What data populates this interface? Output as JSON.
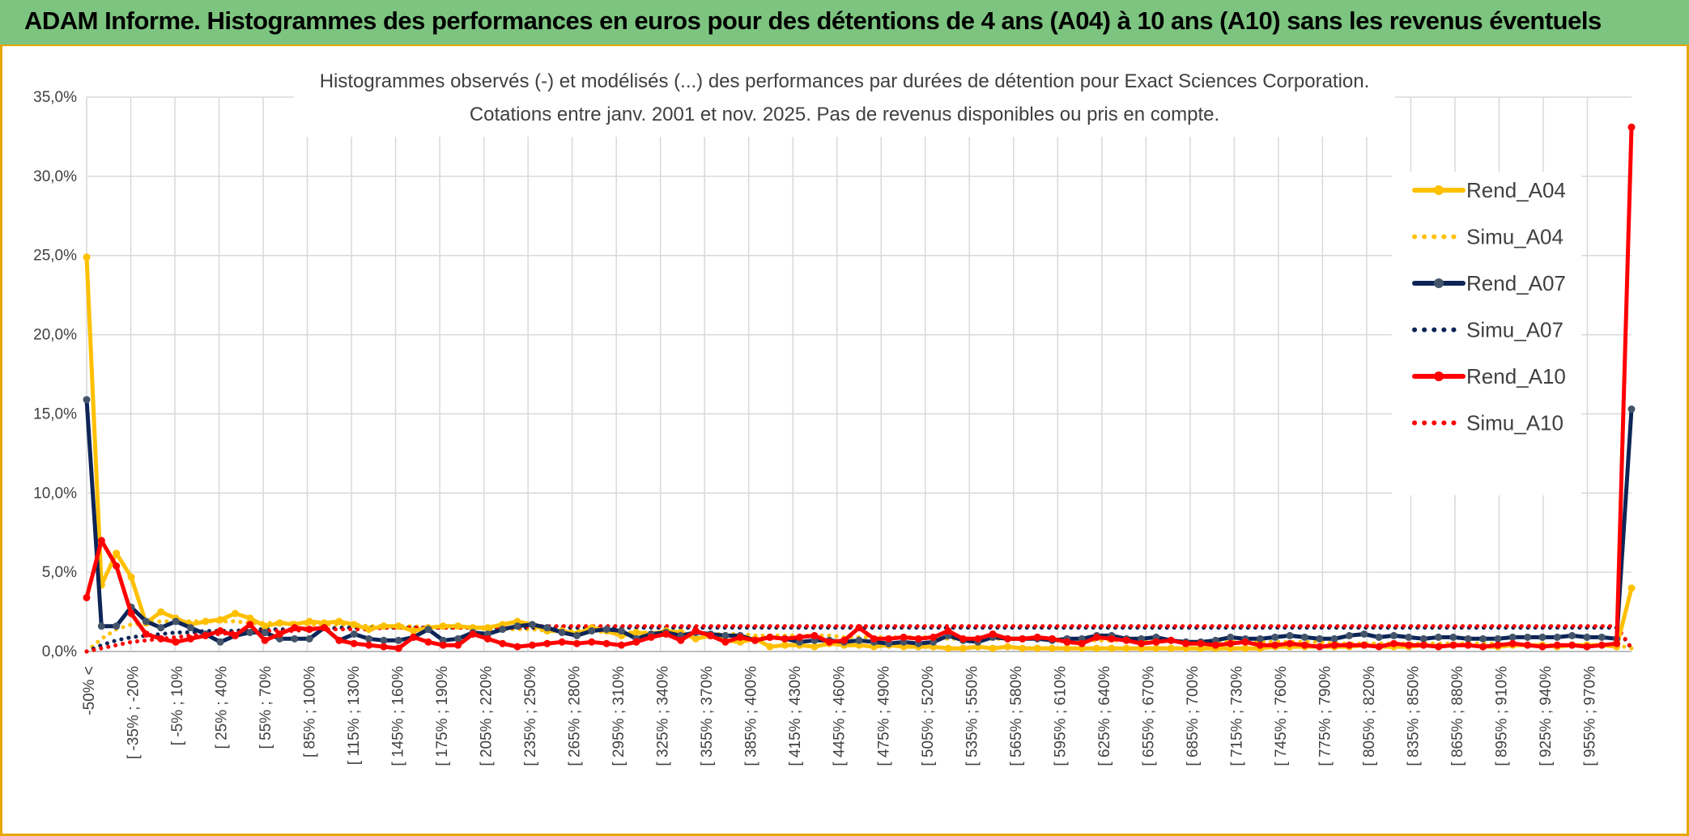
{
  "banner": {
    "title": "ADAM Informe. Histogrammes des performances en euros pour des détentions de 4 ans (A04) à 10 ans (A10) sans les revenus éventuels"
  },
  "colors": {
    "banner_bg": "#7cc47f",
    "frame": "#e6a700",
    "A04": "#ffc000",
    "A07": "#0d2557",
    "A07_marker": "#44546a",
    "A10": "#ff0000",
    "grid": "#d9d9d9"
  },
  "chart_data": {
    "type": "line",
    "title": "Histogrammes observés (-) et modélisés (...) des performances par durées de détention pour Exact Sciences Corporation.",
    "subtitle": "Cotations entre janv. 2001 et nov. 2025. Pas de revenus disponibles ou pris en compte.",
    "ylim": [
      0,
      35
    ],
    "yticks": [
      "0,0%",
      "5,0%",
      "10,0%",
      "15,0%",
      "20,0%",
      "25,0%",
      "30,0%",
      "35,0%"
    ],
    "grid": true,
    "legend_position": "right",
    "x_tick_labels": [
      "-50% <",
      "[ -35% ; -20%",
      "[ -5% ; 10%",
      "[ 25% ; 40%",
      "[ 55% ; 70%",
      "[ 85% ; 100%",
      "[ 115% ; 130%",
      "[ 145% ; 160%",
      "[ 175% ; 190%",
      "[ 205% ; 220%",
      "[ 235% ; 250%",
      "[ 265% ; 280%",
      "[ 295% ; 310%",
      "[ 325% ; 340%",
      "[ 355% ; 370%",
      "[ 385% ; 400%",
      "[ 415% ; 430%",
      "[ 445% ; 460%",
      "[ 475% ; 490%",
      "[ 505% ; 520%",
      "[ 535% ; 550%",
      "[ 565% ; 580%",
      "[ 595% ; 610%",
      "[ 625% ; 640%",
      "[ 655% ; 670%",
      "[ 685% ; 700%",
      "[ 715% ; 730%",
      "[ 745% ; 760%",
      "[ 775% ; 790%",
      "[ 805% ; 820%",
      "[ 835% ; 850%",
      "[ 865% ; 880%",
      "[ 895% ; 910%",
      "[ 925% ; 940%",
      "[ 955% ; 970%"
    ],
    "series": [
      {
        "name": "Rend_A04",
        "style": "solid",
        "color": "#ffc000",
        "values": [
          24.9,
          4.2,
          6.2,
          4.7,
          1.8,
          2.5,
          2.1,
          1.7,
          1.9,
          2.0,
          2.4,
          2.1,
          1.6,
          1.8,
          1.7,
          1.9,
          1.8,
          1.9,
          1.7,
          1.4,
          1.6,
          1.6,
          1.3,
          1.5,
          1.6,
          1.6,
          1.5,
          1.5,
          1.7,
          1.9,
          1.7,
          1.3,
          1.3,
          1.1,
          1.5,
          1.3,
          1.0,
          1.2,
          1.1,
          1.3,
          1.2,
          0.8,
          1.0,
          0.7,
          0.6,
          0.8,
          0.3,
          0.4,
          0.4,
          0.3,
          0.5,
          0.4,
          0.4,
          0.3,
          0.4,
          0.3,
          0.3,
          0.3,
          0.2,
          0.2,
          0.3,
          0.2,
          0.3,
          0.2,
          0.2,
          0.2,
          0.2,
          0.2,
          0.2,
          0.2,
          0.2,
          0.2,
          0.2,
          0.2,
          0.2,
          0.2,
          0.2,
          0.2,
          0.2,
          0.2,
          0.3,
          0.3,
          0.3,
          0.3,
          0.3,
          0.3,
          0.4,
          0.3,
          0.3,
          0.3,
          0.4,
          0.3,
          0.4,
          0.4,
          0.3,
          0.3,
          0.4,
          0.4,
          0.4,
          0.3,
          0.4,
          0.4,
          0.4,
          0.3,
          4.0
        ]
      },
      {
        "name": "Simu_A04",
        "style": "dotted",
        "color": "#ffc000",
        "values": [
          0.0,
          0.8,
          1.4,
          1.7,
          1.8,
          1.9,
          1.9,
          1.9,
          1.9,
          1.9,
          1.9,
          1.8,
          1.8,
          1.8,
          1.8,
          1.7,
          1.7,
          1.7,
          1.7,
          1.6,
          1.6,
          1.6,
          1.6,
          1.5,
          1.5,
          1.5,
          1.5,
          1.4,
          1.4,
          1.4,
          1.4,
          1.3,
          1.3,
          1.3,
          1.3,
          1.2,
          1.2,
          1.2,
          1.2,
          1.2,
          1.1,
          1.1,
          1.1,
          1.1,
          1.1,
          1.0,
          1.0,
          1.0,
          1.0,
          1.0,
          1.0,
          0.9,
          0.9,
          0.9,
          0.9,
          0.9,
          0.9,
          0.9,
          0.8,
          0.8,
          0.8,
          0.8,
          0.8,
          0.8,
          0.8,
          0.7,
          0.7,
          0.7,
          0.7,
          0.7,
          0.7,
          0.7,
          0.7,
          0.7,
          0.6,
          0.6,
          0.6,
          0.6,
          0.6,
          0.6,
          0.6,
          0.6,
          0.6,
          0.6,
          0.5,
          0.5,
          0.5,
          0.5,
          0.5,
          0.5,
          0.5,
          0.5,
          0.5,
          0.5,
          0.5,
          0.5,
          0.4,
          0.4,
          0.4,
          0.4,
          0.4,
          0.4,
          0.4,
          0.4,
          0.2
        ]
      },
      {
        "name": "Rend_A07",
        "style": "solid",
        "color": "#0d2557",
        "values": [
          15.9,
          1.6,
          1.6,
          2.8,
          1.9,
          1.5,
          1.9,
          1.5,
          1.1,
          0.6,
          1.0,
          1.2,
          1.2,
          0.8,
          0.8,
          0.8,
          1.5,
          0.7,
          1.1,
          0.8,
          0.7,
          0.7,
          0.9,
          1.4,
          0.7,
          0.8,
          1.2,
          1.1,
          1.4,
          1.6,
          1.7,
          1.5,
          1.2,
          1.0,
          1.3,
          1.4,
          1.3,
          0.8,
          1.1,
          1.2,
          1.0,
          1.2,
          1.1,
          1.0,
          1.0,
          0.7,
          0.9,
          0.8,
          0.6,
          0.7,
          0.7,
          0.6,
          0.7,
          0.6,
          0.5,
          0.6,
          0.5,
          0.6,
          1.0,
          0.7,
          0.6,
          0.9,
          0.8,
          0.8,
          0.8,
          0.7,
          0.8,
          0.8,
          1.0,
          1.0,
          0.8,
          0.8,
          0.9,
          0.7,
          0.6,
          0.6,
          0.7,
          0.9,
          0.8,
          0.8,
          0.9,
          1.0,
          0.9,
          0.8,
          0.8,
          1.0,
          1.1,
          0.9,
          1.0,
          0.9,
          0.8,
          0.9,
          0.9,
          0.8,
          0.8,
          0.8,
          0.9,
          0.9,
          0.9,
          0.9,
          1.0,
          0.9,
          0.9,
          0.8,
          15.3
        ]
      },
      {
        "name": "Simu_A07",
        "style": "dotted",
        "color": "#0d2557",
        "values": [
          0.0,
          0.4,
          0.7,
          0.9,
          1.0,
          1.1,
          1.2,
          1.2,
          1.3,
          1.3,
          1.3,
          1.4,
          1.4,
          1.4,
          1.4,
          1.4,
          1.4,
          1.5,
          1.5,
          1.5,
          1.5,
          1.5,
          1.5,
          1.5,
          1.5,
          1.5,
          1.5,
          1.5,
          1.5,
          1.5,
          1.5,
          1.5,
          1.5,
          1.5,
          1.5,
          1.5,
          1.5,
          1.5,
          1.5,
          1.5,
          1.5,
          1.5,
          1.5,
          1.5,
          1.5,
          1.5,
          1.5,
          1.5,
          1.5,
          1.5,
          1.5,
          1.5,
          1.5,
          1.5,
          1.5,
          1.5,
          1.5,
          1.5,
          1.5,
          1.5,
          1.5,
          1.5,
          1.5,
          1.5,
          1.5,
          1.5,
          1.5,
          1.5,
          1.5,
          1.5,
          1.5,
          1.5,
          1.5,
          1.5,
          1.5,
          1.5,
          1.5,
          1.5,
          1.5,
          1.5,
          1.5,
          1.5,
          1.5,
          1.5,
          1.5,
          1.5,
          1.5,
          1.5,
          1.5,
          1.5,
          1.5,
          1.5,
          1.5,
          1.5,
          1.5,
          1.5,
          1.5,
          1.5,
          1.5,
          1.5,
          1.5,
          1.5,
          1.5,
          1.5,
          0.2
        ]
      },
      {
        "name": "Rend_A10",
        "style": "solid",
        "color": "#ff0000",
        "values": [
          3.4,
          7.0,
          5.4,
          2.4,
          1.1,
          0.8,
          0.6,
          0.8,
          1.0,
          1.3,
          1.0,
          1.7,
          0.7,
          1.1,
          1.5,
          1.4,
          1.5,
          0.7,
          0.5,
          0.4,
          0.3,
          0.2,
          0.9,
          0.6,
          0.4,
          0.4,
          1.1,
          0.8,
          0.5,
          0.3,
          0.4,
          0.5,
          0.6,
          0.5,
          0.6,
          0.5,
          0.4,
          0.6,
          0.9,
          1.1,
          0.7,
          1.3,
          1.0,
          0.6,
          0.9,
          0.7,
          0.9,
          0.8,
          0.9,
          1.0,
          0.6,
          0.7,
          1.5,
          0.8,
          0.8,
          0.9,
          0.8,
          0.9,
          1.3,
          0.8,
          0.8,
          1.1,
          0.8,
          0.8,
          0.9,
          0.8,
          0.6,
          0.5,
          0.9,
          0.8,
          0.7,
          0.5,
          0.6,
          0.7,
          0.5,
          0.5,
          0.4,
          0.5,
          0.6,
          0.4,
          0.4,
          0.5,
          0.4,
          0.3,
          0.4,
          0.4,
          0.4,
          0.3,
          0.5,
          0.4,
          0.4,
          0.3,
          0.4,
          0.4,
          0.3,
          0.4,
          0.5,
          0.4,
          0.3,
          0.4,
          0.4,
          0.3,
          0.4,
          0.5,
          33.1
        ]
      },
      {
        "name": "Simu_A10",
        "style": "dotted",
        "color": "#ff0000",
        "values": [
          0.0,
          0.2,
          0.4,
          0.6,
          0.7,
          0.8,
          0.9,
          1.0,
          1.1,
          1.1,
          1.2,
          1.2,
          1.3,
          1.3,
          1.3,
          1.4,
          1.4,
          1.4,
          1.4,
          1.4,
          1.5,
          1.5,
          1.5,
          1.5,
          1.5,
          1.5,
          1.5,
          1.5,
          1.5,
          1.5,
          1.6,
          1.6,
          1.6,
          1.6,
          1.6,
          1.6,
          1.6,
          1.6,
          1.6,
          1.6,
          1.6,
          1.6,
          1.6,
          1.6,
          1.6,
          1.6,
          1.6,
          1.6,
          1.6,
          1.6,
          1.6,
          1.6,
          1.6,
          1.6,
          1.6,
          1.6,
          1.6,
          1.6,
          1.6,
          1.6,
          1.6,
          1.6,
          1.6,
          1.6,
          1.6,
          1.6,
          1.6,
          1.6,
          1.6,
          1.6,
          1.6,
          1.6,
          1.6,
          1.6,
          1.6,
          1.6,
          1.6,
          1.6,
          1.6,
          1.6,
          1.6,
          1.6,
          1.6,
          1.6,
          1.6,
          1.6,
          1.6,
          1.6,
          1.6,
          1.6,
          1.6,
          1.6,
          1.6,
          1.6,
          1.6,
          1.6,
          1.6,
          1.6,
          1.6,
          1.6,
          1.6,
          1.6,
          1.6,
          1.6,
          0.2
        ]
      }
    ]
  }
}
